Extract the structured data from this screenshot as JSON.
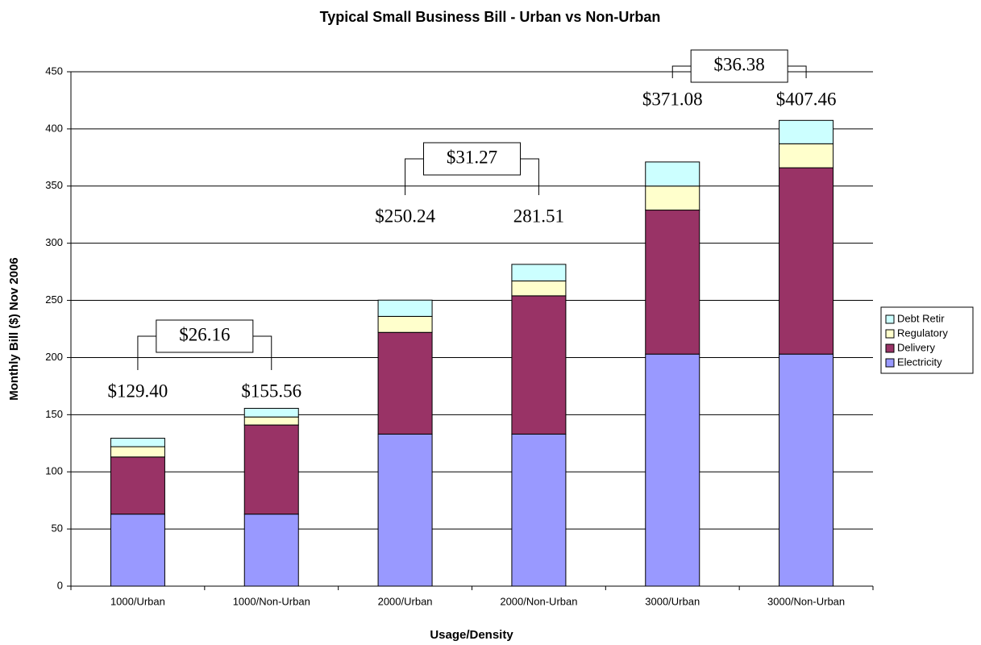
{
  "chart_data": {
    "type": "stacked_bar",
    "title": "Typical Small Business Bill - Urban vs Non-Urban",
    "x_label": "Usage/Density",
    "y_label": "Monthly Bill ($) Nov 2006",
    "categories": [
      "1000/Urban",
      "1000/Non-Urban",
      "2000/Urban",
      "2000/Non-Urban",
      "3000/Urban",
      "3000/Non-Urban"
    ],
    "series": [
      {
        "name": "Electricity",
        "color": "#9999ff",
        "values": [
          63,
          63,
          133,
          133,
          203,
          203
        ]
      },
      {
        "name": "Delivery",
        "color": "#993366",
        "values": [
          50,
          78,
          89,
          121,
          126,
          163
        ]
      },
      {
        "name": "Regulatory",
        "color": "#ffffcc",
        "values": [
          9,
          7,
          14,
          13,
          21,
          21
        ]
      },
      {
        "name": "Debt Retir",
        "color": "#ccffff",
        "values": [
          7.4,
          7.56,
          14.24,
          14.51,
          21.08,
          20.46
        ]
      }
    ],
    "total_labels": [
      "$129.40",
      "$155.56",
      "$250.24",
      "281.51",
      "$371.08",
      "$407.46"
    ],
    "difference_labels": [
      "$26.16",
      "$31.27",
      "$36.38"
    ],
    "ylim": [
      0,
      450
    ],
    "yticks": [
      0,
      50,
      100,
      150,
      200,
      250,
      300,
      350,
      400,
      450
    ],
    "grid": true,
    "legend": "right"
  }
}
